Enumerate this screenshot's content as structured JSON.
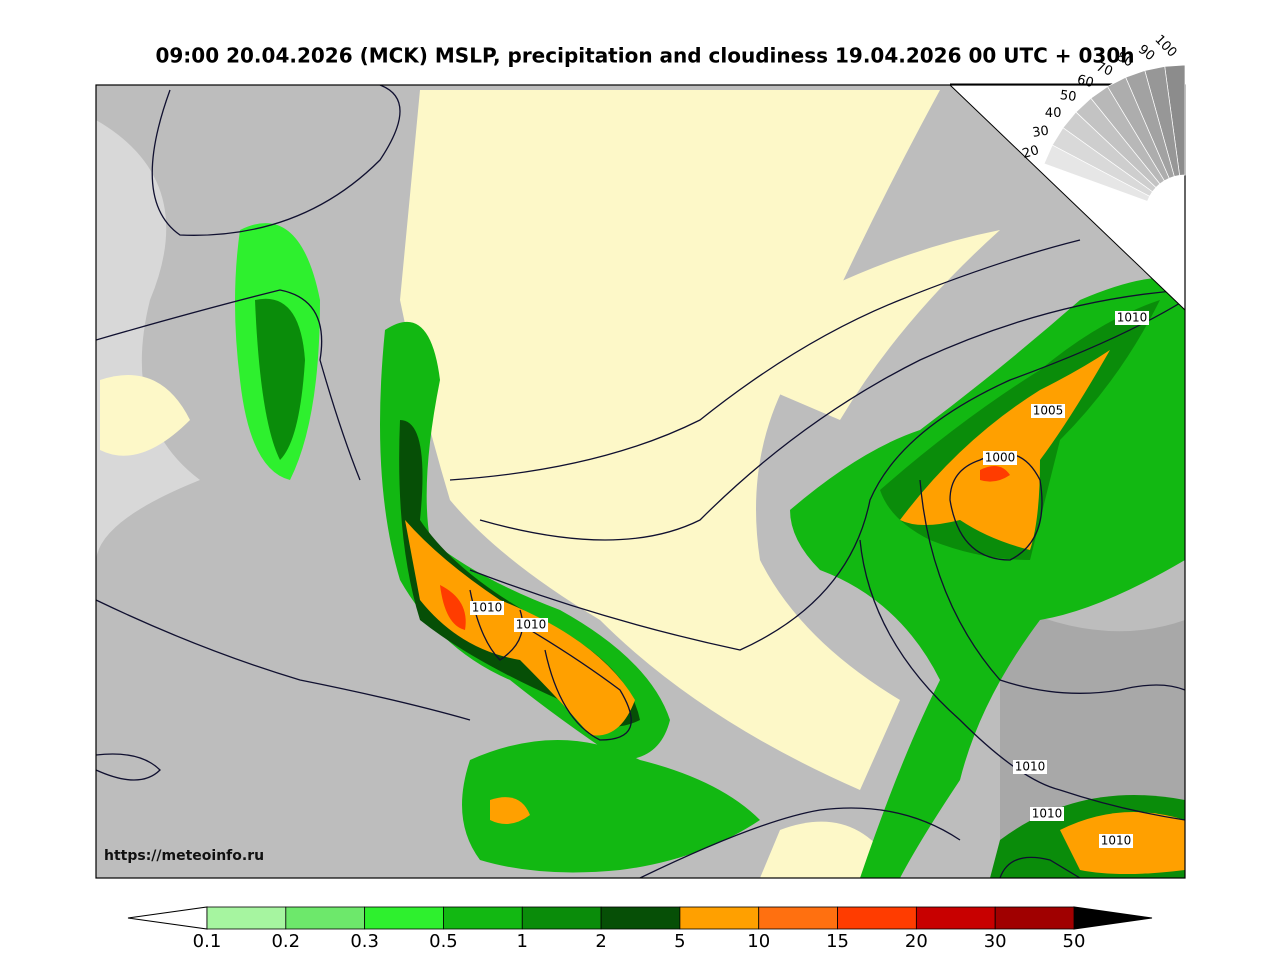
{
  "title": "09:00 20.04.2026 (MCK) MSLP, precipitation and cloudiness 19.04.2026 00 UTC + 030h",
  "source": "https://meteoinfo.ru",
  "isobar_labels": [
    "1010",
    "1005",
    "1000",
    "1010",
    "1010",
    "1010",
    "1010",
    "1010"
  ],
  "cloudiness_scale": {
    "labels": [
      100,
      90,
      80,
      70,
      60,
      50,
      40,
      30,
      20
    ],
    "colors": [
      "#8c8c8c",
      "#979797",
      "#a2a2a2",
      "#adadad",
      "#b8b8b8",
      "#c3c3c3",
      "#cecece",
      "#d9d9d9",
      "#e6e6e6"
    ]
  },
  "precipitation_legend": {
    "labels": [
      0.1,
      0.2,
      0.3,
      0.5,
      1,
      2,
      5,
      10,
      15,
      20,
      30,
      50
    ],
    "colors": [
      "#a6f5a0",
      "#6de86b",
      "#2ef02e",
      "#12b812",
      "#0a8c0a",
      "#064f06",
      "#ffa000",
      "#ff7010",
      "#ff3c00",
      "#c80000",
      "#a00000"
    ],
    "under_color": "#ffffff",
    "over_color": "#000000"
  }
}
